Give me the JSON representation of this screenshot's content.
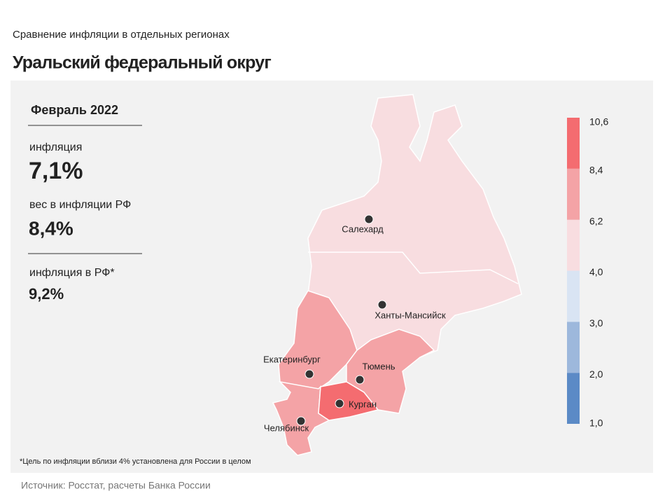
{
  "header": {
    "subtitle": "Сравнение  инфляции  в отдельных  регионах",
    "title": "Уральский федеральный округ"
  },
  "panel": {
    "period": "Февраль 2022",
    "stats": [
      {
        "label": "инфляция",
        "value": "7,1%"
      },
      {
        "label": "вес в инфляции  РФ",
        "value": "8,4%"
      },
      {
        "label": "инфляция  в РФ*",
        "value": "9,2%"
      }
    ]
  },
  "map": {
    "cities": [
      "Салехард",
      "Ханты-Мансийск",
      "Екатеринбург",
      "Тюмень",
      "Курган",
      "Челябинск"
    ]
  },
  "legend": {
    "ticks": [
      {
        "value": 1.0,
        "label": "1,0"
      },
      {
        "value": 2.0,
        "label": "2,0"
      },
      {
        "value": 3.0,
        "label": "3,0"
      },
      {
        "value": 4.0,
        "label": "4,0"
      },
      {
        "value": 6.2,
        "label": "6,2"
      },
      {
        "value": 8.4,
        "label": "8,4"
      },
      {
        "value": 10.6,
        "label": "10,6"
      }
    ],
    "colors": [
      "#5b8ac6",
      "#9db8dc",
      "#d9e4f3",
      "#f8dde0",
      "#f4a3a6",
      "#f46c70"
    ]
  },
  "footnote": "*Цель по инфляции вблизи 4% установлена для России в целом",
  "source": "Источник: Росстат, расчеты Банка России"
}
